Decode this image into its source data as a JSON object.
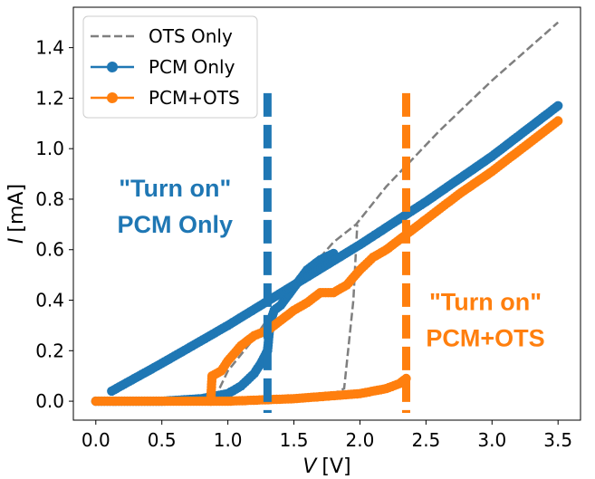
{
  "chart_data": {
    "type": "line",
    "title": "",
    "xlabel_var": "V",
    "xlabel_unit": "[V]",
    "ylabel_var": "I",
    "ylabel_unit": "[mA]",
    "xlim": [
      -0.17,
      3.67
    ],
    "ylim": [
      -0.075,
      1.56
    ],
    "xticks": [
      0.0,
      0.5,
      1.0,
      1.5,
      2.0,
      2.5,
      3.0,
      3.5
    ],
    "xtick_labels": [
      "0.0",
      "0.5",
      "1.0",
      "1.5",
      "2.0",
      "2.5",
      "3.0",
      "3.5"
    ],
    "yticks": [
      0.0,
      0.2,
      0.4,
      0.6,
      0.8,
      1.0,
      1.2,
      1.4
    ],
    "ytick_labels": [
      "0.0",
      "0.2",
      "0.4",
      "0.6",
      "0.8",
      "1.0",
      "1.2",
      "1.4"
    ],
    "grid": false,
    "legend_position": "top-left",
    "colors": {
      "ots": "#7f7f7f",
      "pcm": "#1f77b4",
      "pcmots": "#ff7f0e"
    },
    "series": [
      {
        "name": "OTS Only",
        "style": "dashed",
        "color": "#7f7f7f",
        "segments": [
          {
            "x": [
              0.0,
              0.5,
              0.8,
              0.9
            ],
            "y": [
              0.0,
              0.0,
              0.005,
              0.01
            ]
          },
          {
            "x": [
              0.9,
              1.0,
              1.2,
              1.4,
              1.6,
              1.8,
              1.97,
              2.2,
              2.6,
              3.0,
              3.5
            ],
            "y": [
              0.01,
              0.12,
              0.25,
              0.4,
              0.51,
              0.63,
              0.7,
              0.85,
              1.07,
              1.27,
              1.5
            ]
          },
          {
            "x": [
              0.0,
              1.0,
              1.5,
              1.8,
              1.88,
              1.95,
              1.98
            ],
            "y": [
              0.0,
              0.0,
              0.01,
              0.03,
              0.05,
              0.4,
              0.7
            ]
          }
        ]
      },
      {
        "name": "PCM Only",
        "style": "line-markers",
        "color": "#1f77b4",
        "segments": [
          {
            "x": [
              0.0,
              0.5,
              0.8,
              1.0,
              1.1,
              1.2,
              1.25,
              1.3
            ],
            "y": [
              0.0,
              0.0,
              0.01,
              0.03,
              0.06,
              0.11,
              0.15,
              0.2
            ]
          },
          {
            "x": [
              1.3,
              1.32,
              1.35,
              1.4,
              1.5,
              1.6,
              1.7,
              1.8
            ],
            "y": [
              0.2,
              0.31,
              0.36,
              0.38,
              0.45,
              0.52,
              0.56,
              0.585
            ]
          },
          {
            "x": [
              0.12,
              0.5,
              1.0,
              1.5,
              2.0,
              2.5,
              3.0,
              3.5
            ],
            "y": [
              0.04,
              0.15,
              0.3,
              0.46,
              0.62,
              0.79,
              0.97,
              1.17
            ]
          }
        ]
      },
      {
        "name": "PCM+OTS",
        "style": "line-markers",
        "color": "#ff7f0e",
        "segments": [
          {
            "x": [
              0.0,
              0.5,
              0.85,
              1.0,
              1.5,
              2.0,
              2.2,
              2.3,
              2.35
            ],
            "y": [
              0.0,
              0.0,
              0.0,
              0.0,
              0.01,
              0.03,
              0.05,
              0.07,
              0.09
            ]
          },
          {
            "x": [
              0.87,
              0.88,
              0.95,
              1.0,
              1.1,
              1.2,
              1.3,
              1.4,
              1.5,
              1.6,
              1.7,
              1.8,
              1.9,
              2.0,
              2.1,
              2.2,
              2.3,
              2.35
            ],
            "y": [
              0.0,
              0.1,
              0.12,
              0.16,
              0.22,
              0.26,
              0.28,
              0.32,
              0.36,
              0.39,
              0.43,
              0.43,
              0.46,
              0.52,
              0.57,
              0.6,
              0.64,
              0.66
            ]
          },
          {
            "x": [
              2.35,
              2.5,
              2.75,
              3.0,
              3.25,
              3.5
            ],
            "y": [
              0.66,
              0.72,
              0.82,
              0.91,
              1.01,
              1.11
            ]
          }
        ]
      }
    ],
    "threshold_lines": [
      {
        "name": "PCM Only turn-on",
        "x": 1.3,
        "color": "#1f77b4"
      },
      {
        "name": "PCM+OTS turn-on",
        "x": 2.35,
        "color": "#ff7f0e"
      }
    ],
    "annotations": [
      {
        "name": "pcm-annotation",
        "lines": [
          "\"Turn on\"",
          "PCM Only"
        ],
        "x": 0.6,
        "y": 0.81,
        "color": "#1f77b4"
      },
      {
        "name": "pcmots-annotation",
        "lines": [
          "\"Turn on\"",
          "PCM+OTS"
        ],
        "x": 2.95,
        "y": 0.36,
        "color": "#ff7f0e"
      }
    ]
  }
}
